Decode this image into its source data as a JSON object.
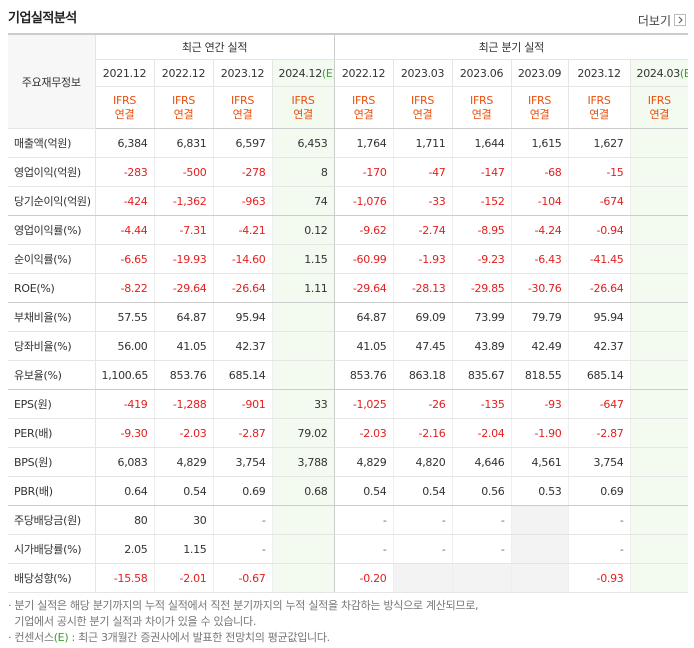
{
  "header": {
    "title": "기업실적분석",
    "more": "더보기"
  },
  "table": {
    "corner": "주요재무정보",
    "groups": [
      "최근 연간 실적",
      "최근 분기 실적"
    ],
    "periods": [
      {
        "date": "2021.12"
      },
      {
        "date": "2022.12"
      },
      {
        "date": "2023.12"
      },
      {
        "date": "2024.12",
        "est": "(E)"
      },
      {
        "date": "2022.12"
      },
      {
        "date": "2023.03"
      },
      {
        "date": "2023.06"
      },
      {
        "date": "2023.09"
      },
      {
        "date": "2023.12"
      },
      {
        "date": "2024.03",
        "est": "(E)"
      }
    ],
    "basis": [
      [
        "IFRS",
        "연결"
      ],
      [
        "IFRS",
        "연결"
      ],
      [
        "IFRS",
        "연결"
      ],
      [
        "IFRS",
        "연결"
      ],
      [
        "IFRS",
        "연결"
      ],
      [
        "IFRS",
        "연결"
      ],
      [
        "IFRS",
        "연결"
      ],
      [
        "IFRS",
        "연결"
      ],
      [
        "IFRS",
        "연결"
      ],
      [
        "IFRS",
        "연결"
      ]
    ],
    "rows": [
      {
        "label": "매출액(억원)",
        "values": [
          "6,384",
          "6,831",
          "6,597",
          "6,453",
          "1,764",
          "1,711",
          "1,644",
          "1,615",
          "1,627",
          null
        ]
      },
      {
        "label": "영업이익(억원)",
        "values": [
          "-283",
          "-500",
          "-278",
          "8",
          "-170",
          "-47",
          "-147",
          "-68",
          "-15",
          null
        ]
      },
      {
        "label": "당기순이익(억원)",
        "values": [
          "-424",
          "-1,362",
          "-963",
          "74",
          "-1,076",
          "-33",
          "-152",
          "-104",
          "-674",
          null
        ]
      },
      {
        "label": "영업이익률(%)",
        "values": [
          "-4.44",
          "-7.31",
          "-4.21",
          "0.12",
          "-9.62",
          "-2.74",
          "-8.95",
          "-4.24",
          "-0.94",
          null
        ]
      },
      {
        "label": "순이익률(%)",
        "values": [
          "-6.65",
          "-19.93",
          "-14.60",
          "1.15",
          "-60.99",
          "-1.93",
          "-9.23",
          "-6.43",
          "-41.45",
          null
        ]
      },
      {
        "label": "ROE(%)",
        "values": [
          "-8.22",
          "-29.64",
          "-26.64",
          "1.11",
          "-29.64",
          "-28.13",
          "-29.85",
          "-30.76",
          "-26.64",
          null
        ]
      },
      {
        "label": "부채비율(%)",
        "values": [
          "57.55",
          "64.87",
          "95.94",
          null,
          "64.87",
          "69.09",
          "73.99",
          "79.79",
          "95.94",
          null
        ]
      },
      {
        "label": "당좌비율(%)",
        "values": [
          "56.00",
          "41.05",
          "42.37",
          null,
          "41.05",
          "47.45",
          "43.89",
          "42.49",
          "42.37",
          null
        ]
      },
      {
        "label": "유보율(%)",
        "values": [
          "1,100.65",
          "853.76",
          "685.14",
          null,
          "853.76",
          "863.18",
          "835.67",
          "818.55",
          "685.14",
          null
        ]
      },
      {
        "label": "EPS(원)",
        "values": [
          "-419",
          "-1,288",
          "-901",
          "33",
          "-1,025",
          "-26",
          "-135",
          "-93",
          "-647",
          null
        ]
      },
      {
        "label": "PER(배)",
        "values": [
          "-9.30",
          "-2.03",
          "-2.87",
          "79.02",
          "-2.03",
          "-2.16",
          "-2.04",
          "-1.90",
          "-2.87",
          null
        ]
      },
      {
        "label": "BPS(원)",
        "values": [
          "6,083",
          "4,829",
          "3,754",
          "3,788",
          "4,829",
          "4,820",
          "4,646",
          "4,561",
          "3,754",
          null
        ]
      },
      {
        "label": "PBR(배)",
        "values": [
          "0.64",
          "0.54",
          "0.69",
          "0.68",
          "0.54",
          "0.54",
          "0.56",
          "0.53",
          "0.69",
          null
        ]
      },
      {
        "label": "주당배당금(원)",
        "values": [
          "80",
          "30",
          "-",
          null,
          "-",
          "-",
          "-",
          null,
          "-",
          null
        ]
      },
      {
        "label": "시가배당률(%)",
        "values": [
          "2.05",
          "1.15",
          "-",
          null,
          "-",
          "-",
          "-",
          null,
          "-",
          null
        ]
      },
      {
        "label": "배당성향(%)",
        "values": [
          "-15.58",
          "-2.01",
          "-0.67",
          null,
          "-0.20",
          null,
          null,
          null,
          "-0.93",
          null
        ]
      }
    ]
  },
  "notes": {
    "note1": [
      "분기 실적은 해당 분기까지의 누적 실적에서 직전 분기까지의 누적 실적을 차감하는 방식으로 계산되므로,",
      "기업에서 공시한 분기 실적과 차이가 있을 수 있습니다."
    ],
    "note2": {
      "term": "컨센서스",
      "mark": "(E)",
      "text": " : 최근 3개월간 증권사에서 발표한 전망치의 평균값입니다."
    }
  }
}
